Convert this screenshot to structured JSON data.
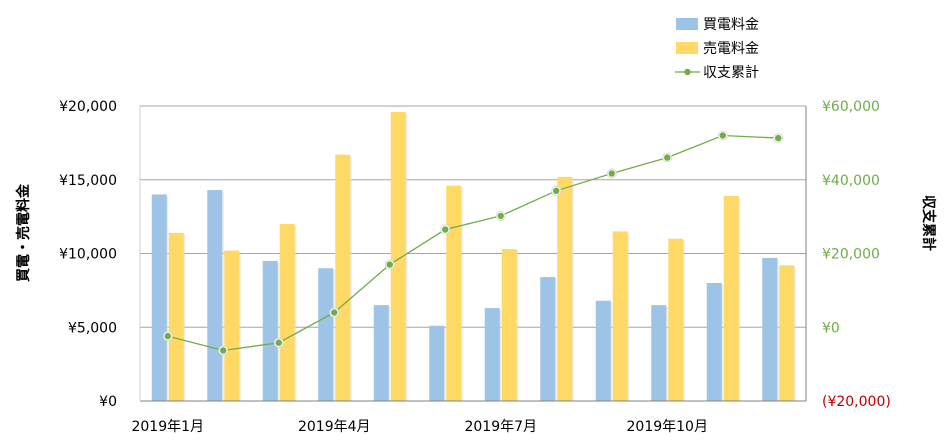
{
  "chart_data": {
    "type": "bar",
    "categories": [
      "2019-01",
      "2019-02",
      "2019-03",
      "2019-04",
      "2019-05",
      "2019-06",
      "2019-07",
      "2019-08",
      "2019-09",
      "2019-10",
      "2019-11",
      "2019-12"
    ],
    "x_tick_labels": [
      "2019年1月",
      "2019年4月",
      "2019年7月",
      "2019年10月"
    ],
    "x_tick_indices": [
      0,
      3,
      6,
      9
    ],
    "series": [
      {
        "name": "買電料金",
        "type": "bar",
        "axis": "left",
        "color": "#9dc3e6",
        "values": [
          14000,
          14300,
          9500,
          9000,
          6500,
          5100,
          6300,
          8400,
          6800,
          6500,
          8000,
          9700
        ]
      },
      {
        "name": "売電料金",
        "type": "bar",
        "axis": "left",
        "color": "#ffd966",
        "values": [
          11400,
          10200,
          12000,
          16700,
          19600,
          14600,
          10300,
          15200,
          11500,
          11000,
          13900,
          9200
        ]
      },
      {
        "name": "収支累計",
        "type": "line",
        "axis": "right",
        "color": "#70ad47",
        "values": [
          -2400,
          -6300,
          -4200,
          4000,
          17000,
          26500,
          30200,
          37000,
          41700,
          46000,
          52000,
          51300
        ]
      }
    ],
    "ylabel": "買電・売電料金",
    "y2label": "収支累計",
    "ylim": [
      0,
      20000
    ],
    "y2lim": [
      -20000,
      60000
    ],
    "y_ticks": [
      0,
      5000,
      10000,
      15000,
      20000
    ],
    "y_tick_labels": [
      "¥0",
      "¥5,000",
      "¥10,000",
      "¥15,000",
      "¥20,000"
    ],
    "y2_ticks": [
      -20000,
      0,
      20000,
      40000,
      60000
    ],
    "y2_tick_labels": [
      "(¥20,000)",
      "¥0",
      "¥20,000",
      "¥40,000",
      "¥60,000"
    ],
    "y2_tick_colors": [
      "#c00000",
      "#70ad47",
      "#70ad47",
      "#70ad47",
      "#70ad47"
    ],
    "grid": true,
    "legend_position": "top-right"
  }
}
